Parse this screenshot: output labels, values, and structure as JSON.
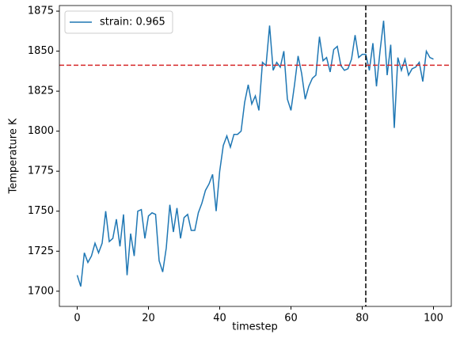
{
  "chart_data": {
    "type": "line",
    "x_label": "timestep",
    "y_label": "Temperature K",
    "x": [
      0,
      1,
      2,
      3,
      4,
      5,
      6,
      7,
      8,
      9,
      10,
      11,
      12,
      13,
      14,
      15,
      16,
      17,
      18,
      19,
      20,
      21,
      22,
      23,
      24,
      25,
      26,
      27,
      28,
      29,
      30,
      31,
      32,
      33,
      34,
      35,
      36,
      37,
      38,
      39,
      40,
      41,
      42,
      43,
      44,
      45,
      46,
      47,
      48,
      49,
      50,
      51,
      52,
      53,
      54,
      55,
      56,
      57,
      58,
      59,
      60,
      61,
      62,
      63,
      64,
      65,
      66,
      67,
      68,
      69,
      70,
      71,
      72,
      73,
      74,
      75,
      76,
      77,
      78,
      79,
      80,
      81,
      82,
      83,
      84,
      85,
      86,
      87,
      88,
      89,
      90,
      91,
      92,
      93,
      94,
      95,
      96,
      97,
      98,
      99,
      100
    ],
    "series": [
      {
        "name": "strain: 0.965",
        "color": "#1f77b4",
        "values": [
          1710,
          1703,
          1724,
          1718,
          1722,
          1730,
          1724,
          1730,
          1750,
          1731,
          1733,
          1745,
          1728,
          1748,
          1710,
          1736,
          1722,
          1750,
          1751,
          1733,
          1747,
          1749,
          1748,
          1719,
          1712,
          1727,
          1754,
          1737,
          1752,
          1733,
          1746,
          1748,
          1738,
          1738,
          1749,
          1755,
          1763,
          1767,
          1773,
          1750,
          1775,
          1791,
          1797,
          1790,
          1798,
          1798,
          1800,
          1818,
          1829,
          1817,
          1822,
          1813,
          1843,
          1841,
          1866,
          1838,
          1843,
          1840,
          1850,
          1820,
          1813,
          1829,
          1847,
          1836,
          1820,
          1828,
          1833,
          1835,
          1859,
          1844,
          1846,
          1837,
          1851,
          1853,
          1841,
          1838,
          1839,
          1845,
          1860,
          1846,
          1848,
          1848,
          1838,
          1855,
          1828,
          1850,
          1869,
          1835,
          1854,
          1802,
          1846,
          1838,
          1845,
          1835,
          1839,
          1840,
          1843,
          1831,
          1850,
          1846,
          1845
        ]
      }
    ],
    "hline": {
      "value": 1841.2,
      "color": "#d62728"
    },
    "vline": {
      "value": 81,
      "color": "#000000"
    },
    "xlim": [
      -5,
      105
    ],
    "xticks": [
      0,
      20,
      40,
      60,
      80,
      100
    ],
    "ylim": [
      1690.5,
      1878.5
    ],
    "yticks": [
      1700,
      1725,
      1750,
      1775,
      1800,
      1825,
      1850,
      1875
    ],
    "legend": "upper-left"
  }
}
